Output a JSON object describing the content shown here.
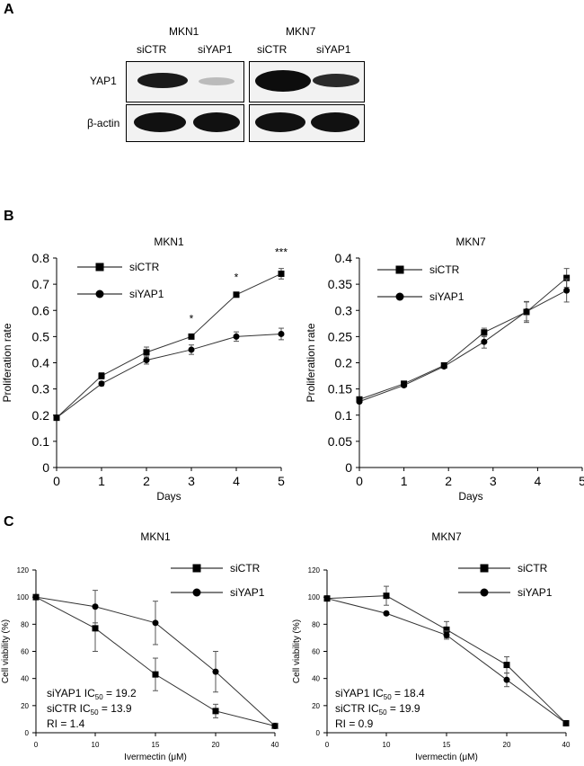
{
  "panels": {
    "a": "A",
    "b": "B",
    "c": "C"
  },
  "blot": {
    "groups": [
      {
        "cell_line": "MKN1",
        "lanes": [
          "siCTR",
          "siYAP1"
        ]
      },
      {
        "cell_line": "MKN7",
        "lanes": [
          "siCTR",
          "siYAP1"
        ]
      }
    ],
    "rows": [
      "YAP1",
      "β-actin"
    ]
  },
  "chart_data": [
    {
      "type": "line",
      "title": "MKN1",
      "xlabel": "Days",
      "ylabel": "Proliferation rate",
      "xlim": [
        0,
        5
      ],
      "ylim": [
        0,
        0.8
      ],
      "xticks": [
        "0",
        "1",
        "2",
        "3",
        "4",
        "5"
      ],
      "yticks": [
        "0",
        "0.1",
        "0.2",
        "0.3",
        "0.4",
        "0.5",
        "0.6",
        "0.7",
        "0.8"
      ],
      "series": [
        {
          "name": "siCTR",
          "marker": "square",
          "x": [
            0,
            1,
            2,
            3,
            4,
            5
          ],
          "values": [
            0.19,
            0.35,
            0.44,
            0.5,
            0.66,
            0.74
          ],
          "err": [
            0.005,
            0.012,
            0.02,
            0.006,
            0.005,
            0.02
          ]
        },
        {
          "name": "siYAP1",
          "marker": "circle",
          "x": [
            0,
            1,
            2,
            3,
            4,
            5
          ],
          "values": [
            0.19,
            0.32,
            0.41,
            0.45,
            0.5,
            0.51
          ],
          "err": [
            0.005,
            0.008,
            0.015,
            0.018,
            0.018,
            0.022
          ]
        }
      ],
      "annotations": [
        {
          "x": 3,
          "text": "*"
        },
        {
          "x": 4,
          "text": "*"
        },
        {
          "x": 5,
          "text": "***"
        }
      ]
    },
    {
      "type": "line",
      "title": "MKN7",
      "xlabel": "Days",
      "ylabel": "Proliferation rate",
      "xlim": [
        0,
        5
      ],
      "ylim": [
        0,
        0.4
      ],
      "xticks": [
        "0",
        "1",
        "2",
        "3",
        "4",
        "5"
      ],
      "yticks": [
        "0",
        "0.05",
        "0.1",
        "0.15",
        "0.2",
        "0.25",
        "0.3",
        "0.35",
        "0.4"
      ],
      "series": [
        {
          "name": "siCTR",
          "marker": "square",
          "x": [
            0,
            1,
            1.9,
            2.8,
            3.75,
            4.65
          ],
          "values": [
            0.13,
            0.16,
            0.195,
            0.258,
            0.297,
            0.362
          ],
          "err": [
            0.003,
            0.003,
            0.003,
            0.008,
            0.02,
            0.018
          ]
        },
        {
          "name": "siYAP1",
          "marker": "circle",
          "x": [
            0,
            1,
            1.9,
            2.8,
            3.75,
            4.65
          ],
          "values": [
            0.126,
            0.157,
            0.193,
            0.24,
            0.298,
            0.338
          ],
          "err": [
            0.003,
            0.003,
            0.003,
            0.012,
            0.018,
            0.022
          ]
        }
      ],
      "annotations": []
    },
    {
      "type": "line",
      "title": "MKN1",
      "xlabel": "Ivermectin  (μM)",
      "ylabel": "Cell viability (%)",
      "xticks": [
        "0",
        "10",
        "15",
        "20",
        "40"
      ],
      "xcategorical": true,
      "ylim": [
        0,
        120
      ],
      "yticks": [
        "0",
        "20",
        "40",
        "60",
        "80",
        "100",
        "120"
      ],
      "series": [
        {
          "name": "siCTR",
          "marker": "square",
          "x": [
            0,
            10,
            15,
            20,
            40
          ],
          "values": [
            100,
            77,
            43,
            16,
            5
          ],
          "err": [
            0,
            17,
            12,
            5,
            2
          ]
        },
        {
          "name": "siYAP1",
          "marker": "circle",
          "x": [
            0,
            10,
            15,
            20,
            40
          ],
          "values": [
            100,
            93,
            81,
            45,
            5
          ],
          "err": [
            0,
            12,
            16,
            15,
            2
          ]
        }
      ],
      "stats": [
        {
          "pre": "siYAP1 IC",
          "sub": "50",
          "post": " = 19.2"
        },
        {
          "pre": "siCTR IC",
          "sub": "50",
          "post": " = 13.9"
        },
        {
          "pre": "RI = 1.4",
          "sub": "",
          "post": ""
        }
      ]
    },
    {
      "type": "line",
      "title": "MKN7",
      "xlabel": "Ivermectin  (μM)",
      "ylabel": "Cell viability (%)",
      "xticks": [
        "0",
        "10",
        "15",
        "20",
        "40"
      ],
      "xcategorical": true,
      "ylim": [
        0,
        120
      ],
      "yticks": [
        "0",
        "20",
        "40",
        "60",
        "80",
        "100",
        "120"
      ],
      "series": [
        {
          "name": "siCTR",
          "marker": "square",
          "x": [
            0,
            10,
            15,
            20,
            40
          ],
          "values": [
            99,
            101,
            76,
            50,
            7
          ],
          "err": [
            0,
            7,
            6,
            6,
            1
          ]
        },
        {
          "name": "siYAP1",
          "marker": "circle",
          "x": [
            0,
            10,
            15,
            20,
            40
          ],
          "values": [
            99,
            88,
            72,
            39,
            7
          ],
          "err": [
            0,
            1,
            3,
            5,
            1
          ]
        }
      ],
      "stats": [
        {
          "pre": "siYAP1 IC",
          "sub": "50",
          "post": " = 18.4"
        },
        {
          "pre": "siCTR IC",
          "sub": "50",
          "post": " = 19.9"
        },
        {
          "pre": "RI = 0.9",
          "sub": "",
          "post": ""
        }
      ]
    }
  ]
}
